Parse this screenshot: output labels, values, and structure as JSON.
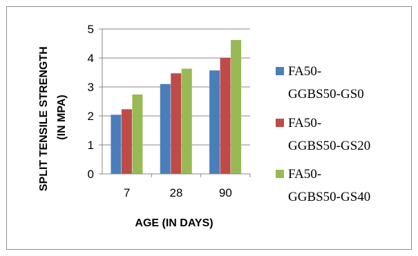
{
  "chart_data": {
    "type": "bar",
    "title": "",
    "xlabel": "AGE (IN DAYS)",
    "ylabel_lines": [
      "SPLIT TENSILE STRENGTH",
      "(IN MPA)"
    ],
    "categories": [
      "7",
      "28",
      "90"
    ],
    "ylim": [
      0,
      5
    ],
    "yticks": [
      "0",
      "1",
      "2",
      "3",
      "4",
      "5"
    ],
    "grid": true,
    "legend_position": "right",
    "series": [
      {
        "name_lines": [
          "FA50-",
          "GGBS50-GS0"
        ],
        "color": "#4a7ebb",
        "values": [
          2.04,
          3.1,
          3.57
        ]
      },
      {
        "name_lines": [
          "FA50-",
          "GGBS50-GS20"
        ],
        "color": "#be4b48",
        "values": [
          2.23,
          3.47,
          4.0
        ]
      },
      {
        "name_lines": [
          "FA50-",
          "GGBS50-GS40"
        ],
        "color": "#98b954",
        "values": [
          2.74,
          3.63,
          4.62
        ]
      }
    ]
  }
}
